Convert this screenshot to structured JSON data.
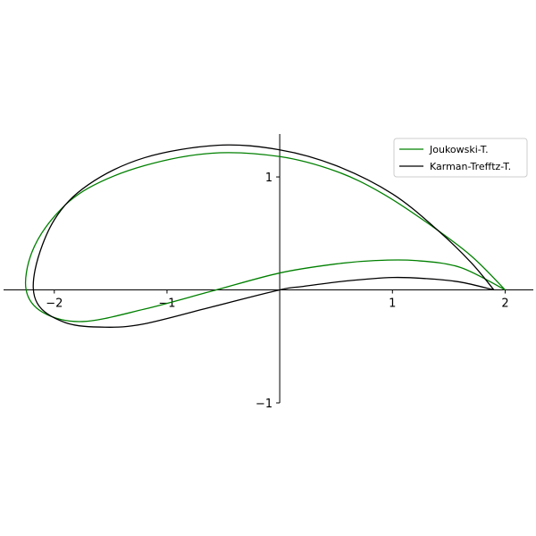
{
  "chart_data": {
    "type": "line",
    "title": "",
    "xlabel": "",
    "ylabel": "",
    "xlim": [
      -2.45,
      2.25
    ],
    "ylim": [
      -1.0,
      1.38
    ],
    "x_ticks": [
      {
        "value": -2,
        "label": "−2"
      },
      {
        "value": -1,
        "label": "−1"
      },
      {
        "value": 1,
        "label": "1"
      },
      {
        "value": 2,
        "label": "2"
      }
    ],
    "y_ticks": [
      {
        "value": -1,
        "label": "−1"
      },
      {
        "value": 1,
        "label": "1"
      }
    ],
    "spines": "centered-at-origin",
    "grid": false,
    "legend_position": "top-right",
    "series": [
      {
        "name": "Joukowski-T.",
        "color": "#008000",
        "x": [
          2.0,
          1.6,
          1.2,
          0.85,
          0.5,
          0.0,
          -0.6,
          -1.2,
          -1.75,
          -2.1,
          -2.25,
          -2.2,
          -2.0,
          -1.7,
          -1.2,
          -0.6,
          0.0,
          0.5,
          0.9,
          1.3,
          1.7,
          2.0
        ],
        "y": [
          0.0,
          0.2,
          0.26,
          0.26,
          0.23,
          0.15,
          -0.01,
          -0.17,
          -0.28,
          -0.2,
          0.0,
          0.33,
          0.65,
          0.9,
          1.1,
          1.21,
          1.18,
          1.05,
          0.86,
          0.6,
          0.3,
          0.0
        ]
      },
      {
        "name": "Karman-Trefftz-T.",
        "color": "#000000",
        "x": [
          1.9,
          1.6,
          1.3,
          1.0,
          0.6,
          0.2,
          0.0,
          -0.6,
          -1.2,
          -1.55,
          -1.9,
          -2.15,
          -2.17,
          -2.0,
          -1.7,
          -1.2,
          -0.55,
          0.0,
          0.5,
          1.0,
          1.4,
          1.7,
          1.9
        ],
        "y": [
          0.0,
          0.07,
          0.1,
          0.11,
          0.08,
          0.03,
          0.0,
          -0.15,
          -0.3,
          -0.33,
          -0.29,
          -0.12,
          0.18,
          0.62,
          0.93,
          1.17,
          1.28,
          1.24,
          1.1,
          0.85,
          0.53,
          0.24,
          0.0
        ]
      }
    ]
  }
}
